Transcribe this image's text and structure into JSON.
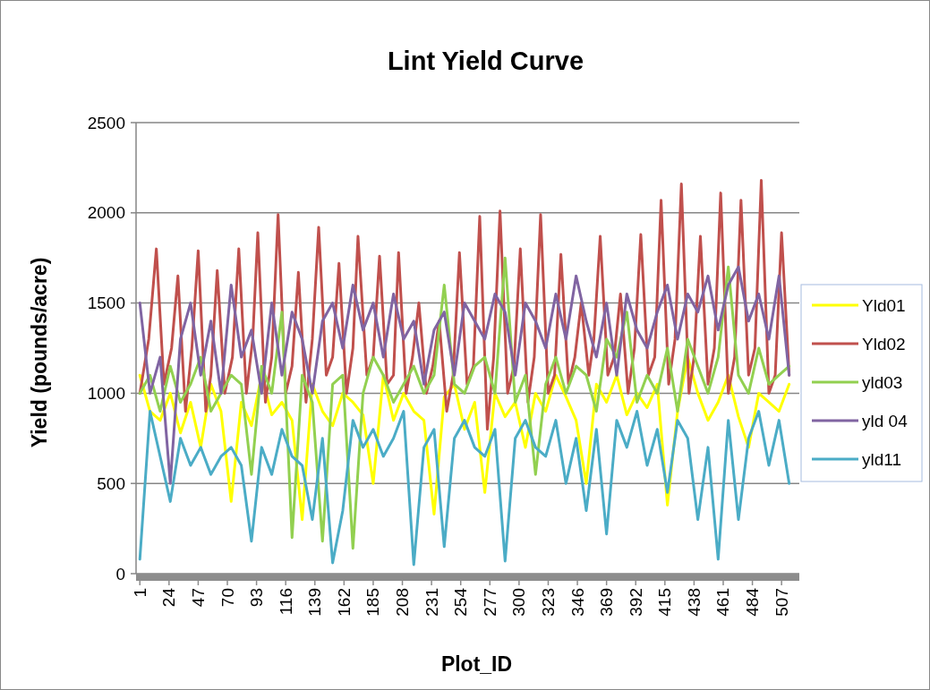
{
  "chart_data": {
    "type": "line",
    "title": "Lint Yield Curve",
    "xlabel": "Plot_ID",
    "ylabel": "Yield (pounds/acre)",
    "x": [
      1,
      9,
      17,
      25,
      33,
      41,
      49,
      57,
      65,
      73,
      81,
      89,
      97,
      105,
      113,
      121,
      129,
      137,
      145,
      153,
      161,
      169,
      177,
      185,
      193,
      201,
      209,
      217,
      225,
      233,
      241,
      249,
      257,
      265,
      273,
      281,
      289,
      297,
      305,
      313,
      321,
      329,
      337,
      345,
      353,
      361,
      369,
      377,
      385,
      393,
      401,
      409,
      417,
      425,
      433,
      441,
      449,
      457,
      465,
      473,
      481,
      489,
      497,
      505,
      513
    ],
    "xlim": [
      -2,
      521
    ],
    "xticks": [
      1,
      24,
      47,
      70,
      93,
      116,
      139,
      162,
      185,
      208,
      231,
      254,
      277,
      300,
      323,
      346,
      369,
      392,
      415,
      438,
      461,
      484,
      507
    ],
    "ylim": [
      0,
      2500
    ],
    "yticks": [
      0,
      500,
      1000,
      1500,
      2000,
      2500
    ],
    "grid": "y",
    "legend": "right",
    "series": [
      {
        "name": "Yld01",
        "color": "#ffff00",
        "values": [
          1100,
          900,
          850,
          1000,
          780,
          950,
          700,
          1050,
          900,
          400,
          950,
          820,
          1100,
          880,
          950,
          850,
          300,
          1050,
          900,
          820,
          1000,
          950,
          880,
          500,
          1100,
          850,
          1000,
          900,
          850,
          330,
          980,
          1050,
          800,
          950,
          450,
          1000,
          870,
          950,
          700,
          1000,
          900,
          1100,
          980,
          850,
          500,
          1050,
          950,
          1100,
          880,
          1000,
          920,
          1050,
          380,
          900,
          1200,
          1000,
          850,
          950,
          1100,
          870,
          700,
          1000,
          950,
          900,
          1050
        ]
      },
      {
        "name": "Yld02",
        "color": "#c0504d",
        "x": [
          1,
          8,
          14,
          20,
          26,
          31,
          37,
          42,
          47,
          53,
          57,
          62,
          68,
          74,
          79,
          85,
          90,
          94,
          100,
          105,
          110,
          116,
          121,
          126,
          132,
          137,
          142,
          148,
          153,
          158,
          164,
          169,
          173,
          180,
          185,
          190,
          196,
          201,
          205,
          211,
          216,
          221,
          227,
          232,
          237,
          243,
          248,
          253,
          259,
          264,
          269,
          275,
          280,
          285,
          291,
          296,
          301,
          307,
          312,
          317,
          323,
          328,
          333,
          339,
          344,
          349,
          355,
          359,
          364,
          370,
          375,
          380,
          386,
          391,
          396,
          402,
          407,
          412,
          418,
          423,
          428,
          434,
          438,
          443,
          449,
          454,
          459,
          465,
          470,
          475,
          481,
          486,
          491,
          497,
          502,
          507,
          513
        ],
        "values": [
          1000,
          1300,
          1800,
          1050,
          1250,
          1650,
          900,
          1250,
          1790,
          900,
          1100,
          1680,
          1000,
          1200,
          1800,
          1000,
          1300,
          1890,
          950,
          1200,
          1990,
          1000,
          1150,
          1670,
          950,
          1300,
          1920,
          1100,
          1200,
          1720,
          1000,
          1250,
          1870,
          1100,
          1200,
          1760,
          1050,
          1100,
          1780,
          1000,
          1200,
          1500,
          1000,
          1150,
          1400,
          900,
          1100,
          1780,
          1050,
          1150,
          1980,
          800,
          1200,
          2010,
          1000,
          1150,
          1800,
          950,
          1200,
          1990,
          1000,
          1100,
          1770,
          1050,
          1200,
          1500,
          1100,
          1300,
          1870,
          1100,
          1200,
          1550,
          1000,
          1250,
          1880,
          1100,
          1200,
          2070,
          1050,
          1300,
          2160,
          1000,
          1200,
          1870,
          1050,
          1250,
          2110,
          1000,
          1200,
          2070,
          1100,
          1250,
          2180,
          1000,
          1100,
          1890,
          1100
        ]
      },
      {
        "name": "yld03",
        "color": "#92d050",
        "values": [
          1000,
          1100,
          900,
          1150,
          950,
          1050,
          1200,
          900,
          1000,
          1100,
          1050,
          550,
          1150,
          1000,
          1450,
          200,
          1100,
          950,
          180,
          1050,
          1100,
          140,
          1000,
          1200,
          1100,
          950,
          1050,
          1150,
          1000,
          1100,
          1600,
          1050,
          1000,
          1150,
          1200,
          1000,
          1750,
          950,
          1100,
          550,
          1050,
          1200,
          1000,
          1150,
          1100,
          900,
          1300,
          1200,
          1450,
          950,
          1100,
          1000,
          1250,
          900,
          1300,
          1150,
          1000,
          1200,
          1700,
          1100,
          1000,
          1250,
          1050,
          1100,
          1150
        ]
      },
      {
        "name": "yld 04",
        "color": "#8064a2",
        "values": [
          1500,
          1000,
          1200,
          500,
          1300,
          1500,
          1100,
          1400,
          1000,
          1600,
          1200,
          1350,
          1000,
          1500,
          1100,
          1450,
          1300,
          1000,
          1400,
          1500,
          1250,
          1600,
          1350,
          1500,
          1200,
          1550,
          1300,
          1400,
          1050,
          1350,
          1450,
          1100,
          1500,
          1400,
          1300,
          1550,
          1450,
          1100,
          1500,
          1400,
          1250,
          1550,
          1300,
          1650,
          1400,
          1200,
          1500,
          1100,
          1550,
          1350,
          1250,
          1450,
          1600,
          1300,
          1550,
          1450,
          1650,
          1350,
          1600,
          1700,
          1400,
          1550,
          1300,
          1650,
          1100
        ]
      },
      {
        "name": "yld11",
        "color": "#4bacc6",
        "values": [
          80,
          900,
          650,
          400,
          750,
          600,
          700,
          550,
          650,
          700,
          600,
          180,
          700,
          550,
          800,
          650,
          600,
          300,
          750,
          60,
          350,
          850,
          700,
          800,
          650,
          750,
          900,
          50,
          700,
          800,
          150,
          750,
          850,
          700,
          650,
          800,
          70,
          750,
          850,
          700,
          650,
          850,
          500,
          750,
          350,
          800,
          220,
          850,
          700,
          900,
          600,
          800,
          450,
          850,
          750,
          300,
          700,
          80,
          850,
          300,
          750,
          900,
          600,
          850,
          500
        ]
      }
    ]
  }
}
